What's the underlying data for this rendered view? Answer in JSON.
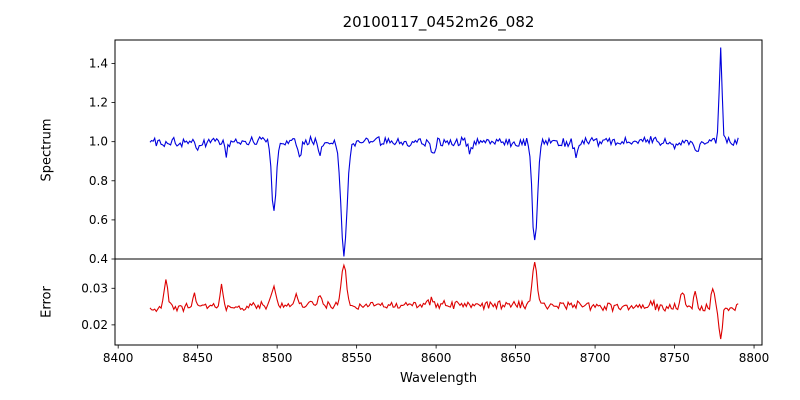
{
  "figure": {
    "title": "20100117_0452m26_082",
    "xlabel": "Wavelength",
    "background": "#ffffff",
    "spine_color": "#000000",
    "xticks": [
      8400,
      8450,
      8500,
      8550,
      8600,
      8650,
      8700,
      8750,
      8800
    ],
    "xtick_labels": [
      "8400",
      "8450",
      "8500",
      "8550",
      "8600",
      "8650",
      "8700",
      "8750",
      "8800"
    ]
  },
  "chart_data": [
    {
      "type": "line",
      "panel": "spectrum",
      "ylabel": "Spectrum",
      "color": "#0000dd",
      "xlim": [
        8398,
        8805
      ],
      "ylim": [
        0.4,
        1.52
      ],
      "yticks": [
        0.4,
        0.6,
        0.8,
        1.0,
        1.2,
        1.4
      ],
      "ytick_labels": [
        "0.4",
        "0.6",
        "0.8",
        "1.0",
        "1.2",
        "1.4"
      ],
      "x_range": [
        8420,
        8790
      ],
      "x_step": 1,
      "baseline": 1.0,
      "baseline_bump": 0.0,
      "noise_amplitude": 0.032,
      "noise_seed": 101,
      "features": [
        {
          "center": 8450,
          "amplitude": -0.05,
          "sigma": 1.0
        },
        {
          "center": 8468,
          "amplitude": -0.06,
          "sigma": 1.0
        },
        {
          "center": 8498,
          "amplitude": -0.35,
          "sigma": 1.4
        },
        {
          "center": 8514,
          "amplitude": -0.09,
          "sigma": 1.1
        },
        {
          "center": 8527,
          "amplitude": -0.06,
          "sigma": 1.0
        },
        {
          "center": 8542,
          "amplitude": -0.57,
          "sigma": 1.9
        },
        {
          "center": 8598,
          "amplitude": -0.06,
          "sigma": 1.0
        },
        {
          "center": 8621,
          "amplitude": -0.05,
          "sigma": 1.0
        },
        {
          "center": 8662,
          "amplitude": -0.51,
          "sigma": 1.6
        },
        {
          "center": 8688,
          "amplitude": -0.07,
          "sigma": 1.0
        },
        {
          "center": 8750,
          "amplitude": -0.05,
          "sigma": 1.0
        },
        {
          "center": 8764,
          "amplitude": -0.06,
          "sigma": 1.2
        },
        {
          "center": 8779,
          "amplitude": 0.47,
          "sigma": 0.9
        }
      ]
    },
    {
      "type": "line",
      "panel": "error",
      "ylabel": "Error",
      "color": "#dd0000",
      "xlim": [
        8398,
        8805
      ],
      "ylim": [
        0.0145,
        0.038
      ],
      "yticks": [
        0.02,
        0.03
      ],
      "ytick_labels": [
        "0.02",
        "0.03"
      ],
      "x_range": [
        8420,
        8790
      ],
      "x_step": 1,
      "baseline": 0.0245,
      "baseline_bump": 0.001,
      "noise_amplitude": 0.0014,
      "noise_seed": 202,
      "features": [
        {
          "center": 8430,
          "amplitude": 0.008,
          "sigma": 1.2
        },
        {
          "center": 8448,
          "amplitude": 0.003,
          "sigma": 1.0
        },
        {
          "center": 8465,
          "amplitude": 0.0055,
          "sigma": 1.1
        },
        {
          "center": 8498,
          "amplitude": 0.0058,
          "sigma": 1.2
        },
        {
          "center": 8512,
          "amplitude": 0.0035,
          "sigma": 1.0
        },
        {
          "center": 8527,
          "amplitude": 0.003,
          "sigma": 1.0
        },
        {
          "center": 8542,
          "amplitude": 0.0115,
          "sigma": 1.5
        },
        {
          "center": 8598,
          "amplitude": 0.002,
          "sigma": 1.0
        },
        {
          "center": 8662,
          "amplitude": 0.0115,
          "sigma": 1.5
        },
        {
          "center": 8735,
          "amplitude": 0.002,
          "sigma": 1.0
        },
        {
          "center": 8755,
          "amplitude": 0.004,
          "sigma": 1.2
        },
        {
          "center": 8763,
          "amplitude": 0.0045,
          "sigma": 1.0
        },
        {
          "center": 8774,
          "amplitude": 0.006,
          "sigma": 0.9
        },
        {
          "center": 8779,
          "amplitude": -0.0085,
          "sigma": 1.1
        }
      ]
    }
  ]
}
